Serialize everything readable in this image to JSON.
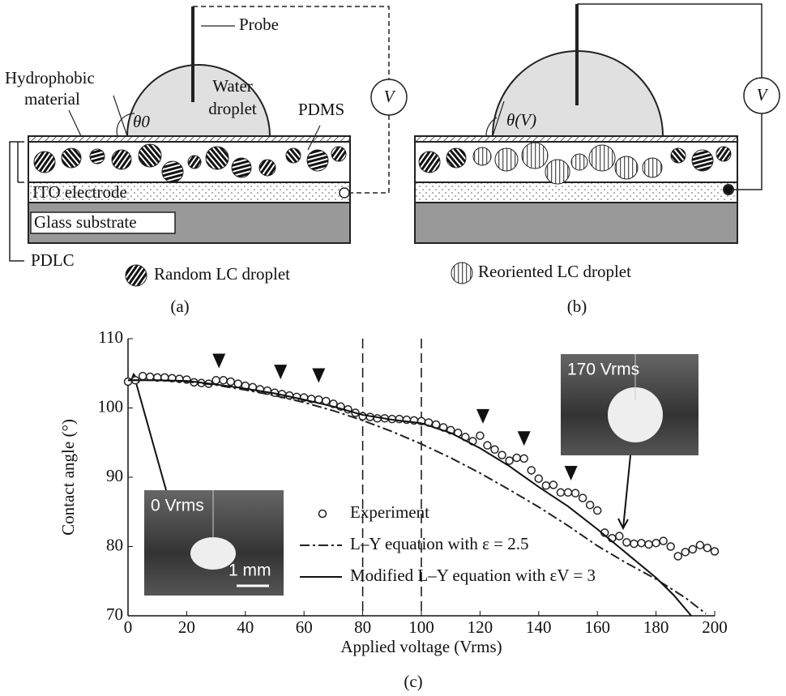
{
  "panel_a": {
    "probe": "Probe",
    "water_droplet": [
      "Water",
      "droplet"
    ],
    "hydrophobic_material": [
      "Hydrophobic",
      "material"
    ],
    "angle": "θ0",
    "pdms": "PDMS",
    "voltmeter": "V",
    "ito": "ITO electrode",
    "glass": "Glass substrate",
    "pdlc": "PDLC",
    "legend": "Random LC droplet",
    "caption": "(a)"
  },
  "panel_b": {
    "angle": "θ(V)",
    "voltmeter": "V",
    "legend": "Reoriented LC droplet",
    "caption": "(b)"
  },
  "chart_data": {
    "type": "line",
    "xlabel": "Applied voltage (Vrms)",
    "ylabel": "Contact angle (°)",
    "caption": "(c)",
    "xlim": [
      0,
      200
    ],
    "ylim": [
      70,
      110
    ],
    "xticks": [
      0,
      20,
      40,
      60,
      80,
      100,
      120,
      140,
      160,
      180,
      200
    ],
    "yticks": [
      70,
      80,
      90,
      100,
      110
    ],
    "vlines": [
      80,
      100
    ],
    "arrowheads": [
      {
        "x": 31,
        "y": 106.2
      },
      {
        "x": 52,
        "y": 104.6
      },
      {
        "x": 65,
        "y": 104.1
      },
      {
        "x": 121,
        "y": 98.2
      },
      {
        "x": 135,
        "y": 95.0
      },
      {
        "x": 151,
        "y": 90.0
      }
    ],
    "insets": [
      {
        "label": "0 Vrms",
        "scale": "1 mm"
      },
      {
        "label": "170 Vrms"
      }
    ],
    "series": [
      {
        "name": "Experiment",
        "style": "markers",
        "color": "#222222",
        "x": [
          0,
          2.5,
          5,
          7.5,
          10,
          12.5,
          15,
          17.5,
          20,
          22.5,
          25,
          27.5,
          30,
          32.5,
          35,
          37.5,
          40,
          42.5,
          45,
          47.5,
          50,
          52.5,
          55,
          57.5,
          60,
          62.5,
          65,
          67.5,
          70,
          72.5,
          75,
          77.5,
          80,
          82.5,
          85,
          87.5,
          90,
          92.5,
          95,
          97.5,
          100,
          102.5,
          105,
          107.5,
          110,
          112.5,
          115,
          117.5,
          120,
          122.5,
          125,
          127.5,
          130,
          132.5,
          135,
          137.5,
          140,
          142.5,
          145,
          147.5,
          150,
          152.5,
          155,
          157.5,
          160,
          162.5,
          165,
          167.5,
          170,
          172.5,
          175,
          177.5,
          180,
          182.5,
          185,
          187.5,
          190,
          192.5,
          195,
          197.5,
          200
        ],
        "values": [
          103.8,
          104.0,
          104.6,
          104.5,
          104.4,
          104.4,
          104.3,
          104.2,
          104.1,
          103.7,
          103.6,
          103.5,
          104.0,
          104.0,
          103.8,
          103.5,
          103.2,
          103.0,
          102.7,
          102.5,
          102.2,
          102.0,
          101.8,
          101.6,
          101.5,
          101.3,
          101.2,
          101.0,
          100.6,
          100.2,
          99.8,
          99.3,
          98.8,
          98.7,
          98.5,
          98.5,
          98.4,
          98.4,
          98.3,
          98.2,
          98.1,
          97.9,
          97.6,
          97.2,
          96.8,
          96.4,
          95.8,
          95.2,
          96.0,
          94.6,
          94.0,
          93.2,
          92.4,
          92.8,
          92.7,
          91.0,
          89.8,
          88.8,
          88.9,
          87.8,
          87.8,
          87.7,
          87.0,
          86.0,
          85.2,
          82.0,
          81.2,
          81.5,
          80.6,
          80.4,
          80.5,
          80.3,
          80.5,
          80.8,
          80.0,
          78.6,
          79.2,
          79.6,
          80.2,
          79.8,
          79.3
        ]
      },
      {
        "name": "L–Y equation with ε = 2.5",
        "style": "dashdot",
        "color": "#222222",
        "x": [
          0,
          10,
          20,
          30,
          40,
          50,
          60,
          70,
          80,
          90,
          100,
          110,
          120,
          130,
          140,
          150,
          160,
          170,
          180,
          190,
          197
        ],
        "values": [
          104,
          104,
          103.8,
          103.3,
          102.6,
          101.8,
          100.8,
          99.6,
          98.2,
          96.6,
          94.8,
          92.8,
          90.6,
          88.2,
          85.7,
          83.0,
          80.1,
          77.6,
          75.3,
          72.6,
          70.3
        ]
      },
      {
        "name": "Modified L–Y equation with εV = 3",
        "style": "solid",
        "color": "#111111",
        "x": [
          0,
          10,
          20,
          30,
          40,
          50,
          60,
          70,
          80,
          90,
          100,
          110,
          120,
          130,
          140,
          150,
          160,
          170,
          180,
          186,
          192
        ],
        "values": [
          104,
          104,
          103.9,
          103.4,
          102.8,
          102.1,
          101.2,
          100.2,
          99.0,
          98.3,
          97.8,
          96.4,
          94.2,
          91.6,
          88.6,
          85.8,
          82.5,
          79.0,
          75.5,
          73.0,
          70
        ]
      }
    ]
  }
}
